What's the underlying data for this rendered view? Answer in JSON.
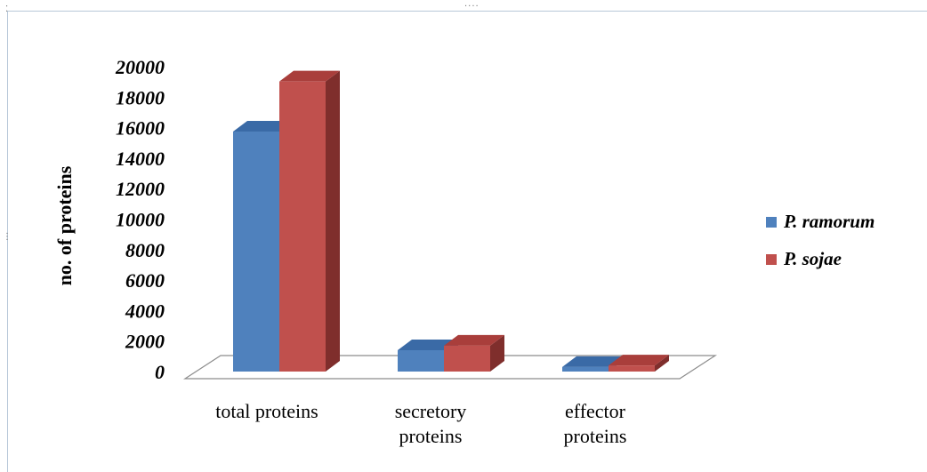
{
  "colors": {
    "series_1": "#4f81bd",
    "series_1_top": "#3a6aa6",
    "series_1_side": "#2f5486",
    "series_2": "#c0504d",
    "series_2_top": "#a93e3b",
    "series_2_side": "#7f2e2c",
    "frame": "#b7c7d8"
  },
  "chart_data": {
    "type": "bar",
    "style": "3d-clustered-column",
    "title": "",
    "xlabel": "",
    "ylabel": "no. of proteins",
    "ylim": [
      0,
      20000
    ],
    "yticks": [
      "20000",
      "18000",
      "16000",
      "14000",
      "12000",
      "10000",
      "8000",
      "6000",
      "4000",
      "2000",
      "0"
    ],
    "ytick_values": [
      20000,
      18000,
      16000,
      14000,
      12000,
      10000,
      8000,
      6000,
      4000,
      2000,
      0
    ],
    "categories": [
      [
        "total proteins"
      ],
      [
        "secretory",
        "proteins"
      ],
      [
        "effector",
        "proteins"
      ]
    ],
    "series": [
      {
        "name": "P. ramorum",
        "values": [
          15743,
          1400,
          300
        ]
      },
      {
        "name": "P. sojae",
        "values": [
          19027,
          1700,
          400
        ]
      }
    ],
    "legend_position": "right",
    "grid": false
  }
}
